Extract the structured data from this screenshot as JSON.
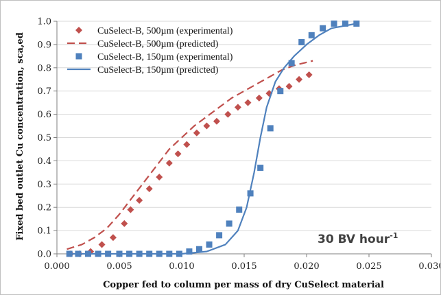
{
  "chart_data": {
    "type": "scatter",
    "xlabel": "Copper fed to column per mass of dry CuSelect material",
    "ylabel": "Fixed bed outlet Cu concentration, sca,ed",
    "xlim": [
      0.0,
      0.03
    ],
    "ylim": [
      0.0,
      1.0
    ],
    "x_ticks": [
      "0.000",
      "0.005",
      "0.010",
      "0.015",
      "0.020",
      "0.025",
      "0.030"
    ],
    "y_ticks": [
      "0.0",
      "0.1",
      "0.2",
      "0.3",
      "0.4",
      "0.5",
      "0.6",
      "0.7",
      "0.8",
      "0.9",
      "1.0"
    ],
    "grid": "horizontal",
    "legend_position": "top-left",
    "annotation": {
      "text": "30 BV hour",
      "sup": "-1"
    },
    "series": [
      {
        "name": "CuSelect-B, 500µm (experimental)",
        "style": "diamond-marker",
        "color": "#c0504d",
        "points": [
          [
            0.0011,
            0.0
          ],
          [
            0.0018,
            0.0
          ],
          [
            0.0027,
            0.01
          ],
          [
            0.0036,
            0.04
          ],
          [
            0.0045,
            0.07
          ],
          [
            0.0054,
            0.13
          ],
          [
            0.0059,
            0.19
          ],
          [
            0.0066,
            0.23
          ],
          [
            0.0074,
            0.28
          ],
          [
            0.0082,
            0.33
          ],
          [
            0.009,
            0.39
          ],
          [
            0.0097,
            0.43
          ],
          [
            0.0104,
            0.47
          ],
          [
            0.0112,
            0.52
          ],
          [
            0.012,
            0.55
          ],
          [
            0.0128,
            0.57
          ],
          [
            0.0137,
            0.6
          ],
          [
            0.0145,
            0.63
          ],
          [
            0.0153,
            0.65
          ],
          [
            0.0162,
            0.67
          ],
          [
            0.017,
            0.69
          ],
          [
            0.0178,
            0.71
          ],
          [
            0.0186,
            0.72
          ],
          [
            0.0194,
            0.75
          ],
          [
            0.0202,
            0.77
          ]
        ]
      },
      {
        "name": "CuSelect-B, 500µm (predicted)",
        "style": "dashed-line",
        "color": "#c0504d",
        "points": [
          [
            0.0008,
            0.02
          ],
          [
            0.002,
            0.04
          ],
          [
            0.003,
            0.07
          ],
          [
            0.004,
            0.11
          ],
          [
            0.005,
            0.17
          ],
          [
            0.006,
            0.24
          ],
          [
            0.007,
            0.31
          ],
          [
            0.008,
            0.38
          ],
          [
            0.009,
            0.45
          ],
          [
            0.01,
            0.5
          ],
          [
            0.011,
            0.55
          ],
          [
            0.012,
            0.59
          ],
          [
            0.013,
            0.63
          ],
          [
            0.014,
            0.67
          ],
          [
            0.015,
            0.7
          ],
          [
            0.016,
            0.73
          ],
          [
            0.017,
            0.76
          ],
          [
            0.018,
            0.79
          ],
          [
            0.019,
            0.81
          ],
          [
            0.0205,
            0.83
          ]
        ]
      },
      {
        "name": "CuSelect-B, 150µm (experimental)",
        "style": "square-marker",
        "color": "#4f81bd",
        "points": [
          [
            0.001,
            0.0
          ],
          [
            0.0017,
            0.0
          ],
          [
            0.0025,
            0.0
          ],
          [
            0.0033,
            0.0
          ],
          [
            0.0041,
            0.0
          ],
          [
            0.005,
            0.0
          ],
          [
            0.0058,
            0.0
          ],
          [
            0.0066,
            0.0
          ],
          [
            0.0074,
            0.0
          ],
          [
            0.0082,
            0.0
          ],
          [
            0.009,
            0.0
          ],
          [
            0.0098,
            0.0
          ],
          [
            0.0106,
            0.01
          ],
          [
            0.0114,
            0.02
          ],
          [
            0.0122,
            0.04
          ],
          [
            0.013,
            0.08
          ],
          [
            0.0138,
            0.13
          ],
          [
            0.0146,
            0.19
          ],
          [
            0.0155,
            0.26
          ],
          [
            0.0163,
            0.37
          ],
          [
            0.0171,
            0.54
          ],
          [
            0.0179,
            0.7
          ],
          [
            0.0188,
            0.82
          ],
          [
            0.0196,
            0.91
          ],
          [
            0.0204,
            0.94
          ],
          [
            0.0213,
            0.97
          ],
          [
            0.0222,
            0.99
          ],
          [
            0.0231,
            0.99
          ],
          [
            0.024,
            0.99
          ]
        ]
      },
      {
        "name": "CuSelect-B, 150µm (predicted)",
        "style": "solid-line",
        "color": "#4f81bd",
        "points": [
          [
            0.0008,
            0.0
          ],
          [
            0.01,
            0.0
          ],
          [
            0.012,
            0.01
          ],
          [
            0.0135,
            0.04
          ],
          [
            0.0145,
            0.1
          ],
          [
            0.0152,
            0.2
          ],
          [
            0.0158,
            0.35
          ],
          [
            0.0163,
            0.5
          ],
          [
            0.0168,
            0.63
          ],
          [
            0.0175,
            0.74
          ],
          [
            0.0182,
            0.8
          ],
          [
            0.019,
            0.85
          ],
          [
            0.02,
            0.9
          ],
          [
            0.021,
            0.94
          ],
          [
            0.022,
            0.97
          ],
          [
            0.023,
            0.98
          ],
          [
            0.024,
            0.99
          ]
        ]
      }
    ]
  }
}
